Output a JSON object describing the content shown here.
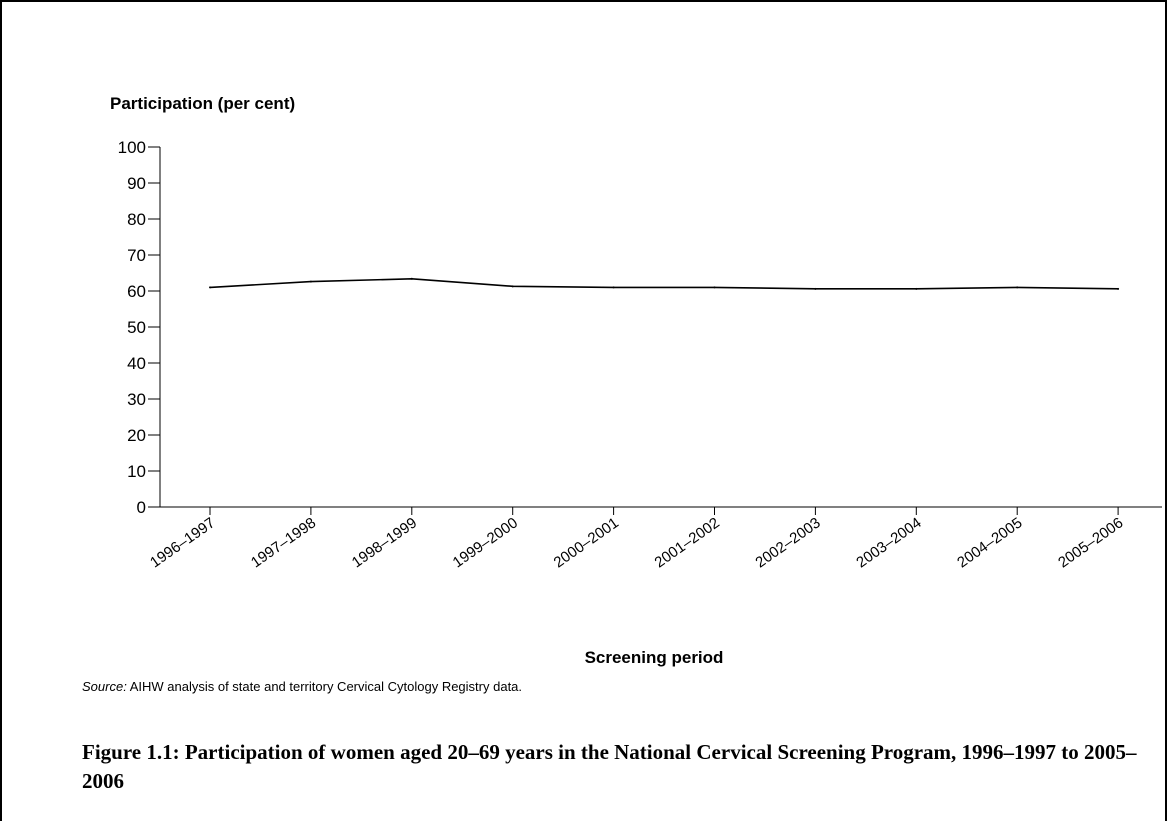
{
  "chart_data": {
    "type": "line",
    "ylabel": "Participation (per cent)",
    "xlabel": "Screening period",
    "ylim": [
      0,
      100
    ],
    "yticks": [
      0,
      10,
      20,
      30,
      40,
      50,
      60,
      70,
      80,
      90,
      100
    ],
    "categories": [
      "1996–1997",
      "1997–1998",
      "1998–1999",
      "1999–2000",
      "2000–2001",
      "2001–2002",
      "2002–2003",
      "2003–2004",
      "2004–2005",
      "2005–2006"
    ],
    "series": [
      {
        "values": [
          61.0,
          62.6,
          63.4,
          61.3,
          61.0,
          61.0,
          60.6,
          60.6,
          61.0,
          60.6
        ]
      }
    ],
    "grid": false,
    "line_color": "#000000"
  },
  "source": {
    "prefix": "Source:",
    "text": " AIHW analysis of state and territory Cervical Cytology Registry data."
  },
  "caption": "Figure 1.1: Participation of women aged 20–69 years in the National Cervical Screening Program, 1996–1997 to 2005–2006"
}
